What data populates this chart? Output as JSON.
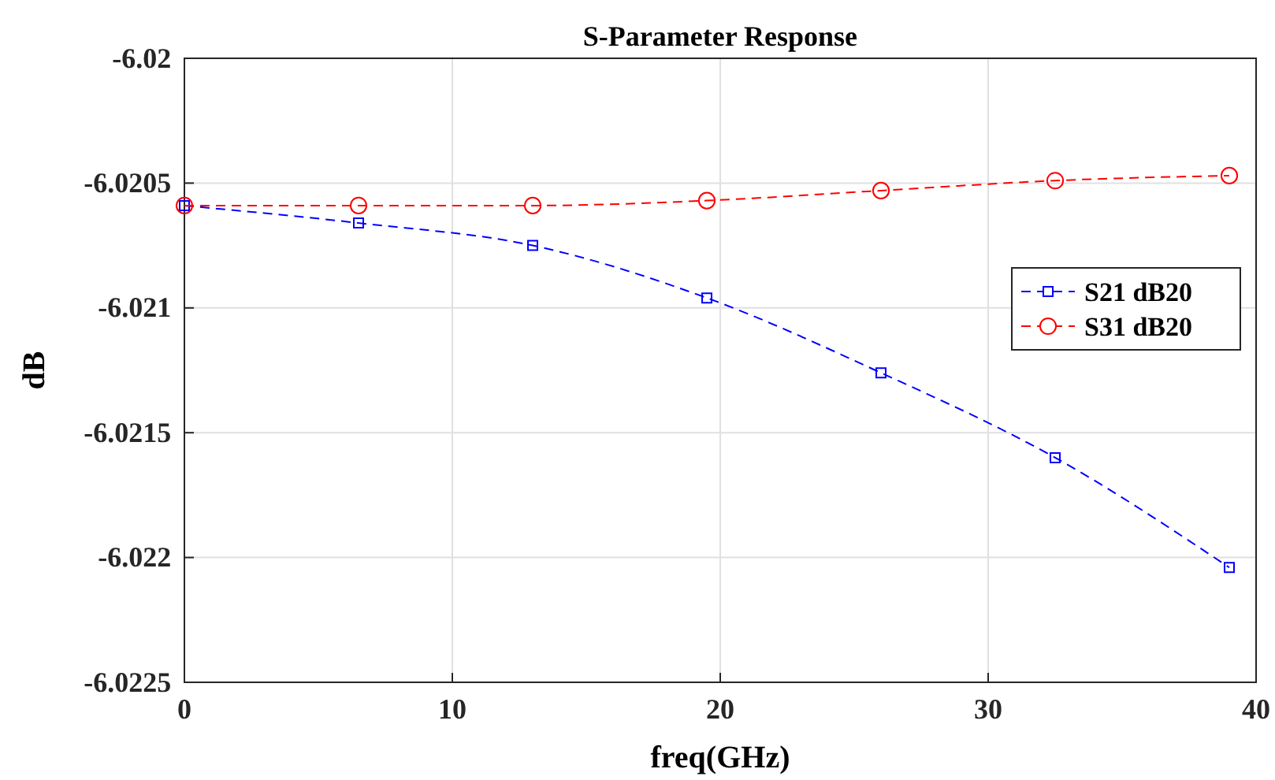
{
  "chart_data": {
    "type": "line",
    "title": "S-Parameter Response",
    "xlabel": "freq(GHz)",
    "ylabel": "dB",
    "x": [
      0,
      6.5,
      13,
      19.5,
      26,
      32.5,
      39
    ],
    "series": [
      {
        "name": "S21 dB20",
        "color": "#0000ff",
        "marker": "square",
        "values": [
          -6.02059,
          -6.02066,
          -6.02075,
          -6.02096,
          -6.02126,
          -6.0216,
          -6.02204
        ]
      },
      {
        "name": "S31 dB20",
        "color": "#ff0000",
        "marker": "circle",
        "values": [
          -6.02059,
          -6.02059,
          -6.02059,
          -6.02057,
          -6.02053,
          -6.02049,
          -6.02047
        ]
      }
    ],
    "xlim": [
      0,
      40
    ],
    "xticks": [
      0,
      10,
      20,
      30,
      40
    ],
    "ylim": [
      -6.0225,
      -6.02
    ],
    "yticks": [
      -6.0225,
      -6.022,
      -6.0215,
      -6.021,
      -6.0205,
      -6.02
    ],
    "grid": true,
    "legend": "right",
    "line_style": "dashed"
  }
}
